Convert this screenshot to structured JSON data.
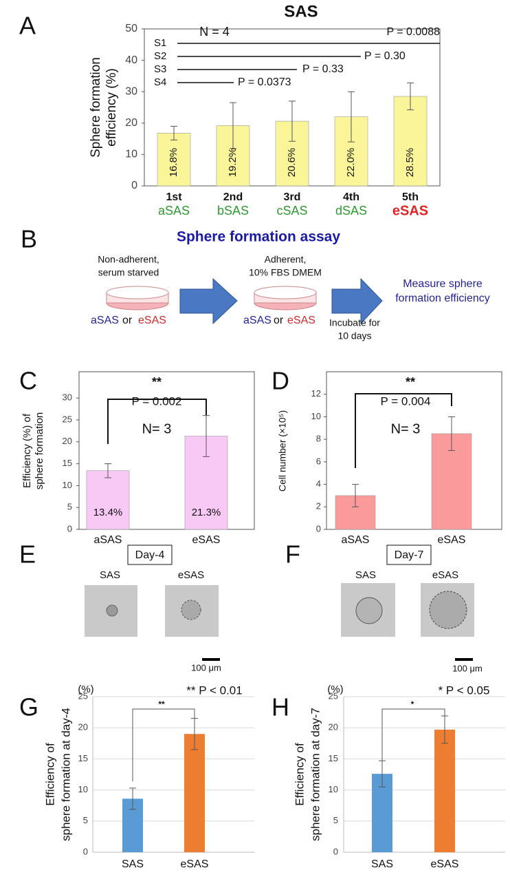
{
  "chart_data": [
    {
      "type": "bar",
      "panel": "A",
      "title": "SAS",
      "ylabel": [
        "Sphere formation",
        "efficiency (%)"
      ],
      "categories": [
        "1st",
        "2nd",
        "3rd",
        "4th",
        "5th"
      ],
      "sublabels": [
        "aSAS",
        "bSAS",
        "cSAS",
        "dSAS",
        "eSAS"
      ],
      "sublabel_colors": [
        "#2f9a2f",
        "#2f9a2f",
        "#2f9a2f",
        "#2f9a2f",
        "#e02424"
      ],
      "values": [
        16.8,
        19.2,
        20.6,
        22.0,
        28.5
      ],
      "value_labels": [
        "16.8%",
        "19.2%",
        "20.6%",
        "22.0%",
        "28.5%"
      ],
      "errors": [
        2.2,
        7.3,
        6.4,
        8.0,
        4.3
      ],
      "color": "#fbf59a",
      "ylim": [
        0,
        50
      ],
      "yticks": [
        0,
        10,
        20,
        30,
        40,
        50
      ],
      "annotations": [
        "N = 4"
      ],
      "comparisons": [
        {
          "label": "S1",
          "p": "P = 0.0088"
        },
        {
          "label": "S2",
          "p": "P = 0.30"
        },
        {
          "label": "S3",
          "p": "P = 0.33"
        },
        {
          "label": "S4",
          "p": "P = 0.0373"
        }
      ]
    },
    {
      "type": "bar",
      "panel": "C",
      "ylabel": [
        "Efficiency (%) of",
        "sphere formation"
      ],
      "categories": [
        "aSAS",
        "eSAS"
      ],
      "values": [
        13.4,
        21.3
      ],
      "value_labels": [
        "13.4%",
        "21.3%"
      ],
      "errors": [
        1.6,
        4.7
      ],
      "color": "#f9c9f6",
      "ylim": [
        0,
        36
      ],
      "yticks": [
        0,
        5,
        10,
        15,
        20,
        25,
        30
      ],
      "annotations": [
        "**",
        "P = 0.002",
        "N= 3"
      ]
    },
    {
      "type": "bar",
      "panel": "D",
      "ylabel": [
        "Cell number (×10⁵)"
      ],
      "categories": [
        "aSAS",
        "eSAS"
      ],
      "values": [
        3.0,
        8.5
      ],
      "errors": [
        1.0,
        1.5
      ],
      "color": "#fb9a9a",
      "ylim": [
        0,
        14
      ],
      "yticks": [
        0,
        2,
        4,
        6,
        8,
        10,
        12
      ],
      "annotations": [
        "**",
        "P = 0.004",
        "N= 3"
      ]
    },
    {
      "type": "bar",
      "panel": "G",
      "ylabel": [
        "Efficiency of",
        "sphere formation at day-4"
      ],
      "yunit": "(%)",
      "categories": [
        "SAS",
        "eSAS"
      ],
      "values": [
        8.6,
        19.0
      ],
      "errors": [
        1.7,
        2.5
      ],
      "colors": [
        "#5b9bd5",
        "#ed7d31"
      ],
      "ylim": [
        0,
        25
      ],
      "yticks": [
        0,
        5,
        10,
        15,
        20,
        25
      ],
      "grid": true,
      "annotations": [
        "**",
        "** P < 0.01"
      ]
    },
    {
      "type": "bar",
      "panel": "H",
      "ylabel": [
        "Efficiency of",
        "sphere formation at day-7"
      ],
      "yunit": "(%)",
      "categories": [
        "SAS",
        "eSAS"
      ],
      "values": [
        12.6,
        19.7
      ],
      "errors": [
        2.1,
        2.2
      ],
      "colors": [
        "#5b9bd5",
        "#ed7d31"
      ],
      "ylim": [
        0,
        25
      ],
      "yticks": [
        0,
        5,
        10,
        15,
        20,
        25
      ],
      "grid": true,
      "annotations": [
        "*",
        "* P < 0.05"
      ]
    }
  ],
  "assay": {
    "panel": "B",
    "title": "Sphere formation assay",
    "step1": {
      "condition": [
        "Non-adherent,",
        "serum starved"
      ],
      "cells": [
        "aSAS",
        "or",
        "eSAS"
      ]
    },
    "step2": {
      "condition": [
        "Adherent,",
        "10% FBS DMEM"
      ],
      "cells": [
        "aSAS",
        "or",
        "eSAS"
      ]
    },
    "incubation": [
      "Incubate for",
      "10 days"
    ],
    "result": [
      "Measure sphere",
      "formation efficiency"
    ]
  },
  "images": [
    {
      "panel": "E",
      "day": "Day-4",
      "labels": [
        "SAS",
        "eSAS"
      ],
      "scale": "100 μm"
    },
    {
      "panel": "F",
      "day": "Day-7",
      "labels": [
        "SAS",
        "eSAS"
      ],
      "scale": "100 μm"
    }
  ]
}
